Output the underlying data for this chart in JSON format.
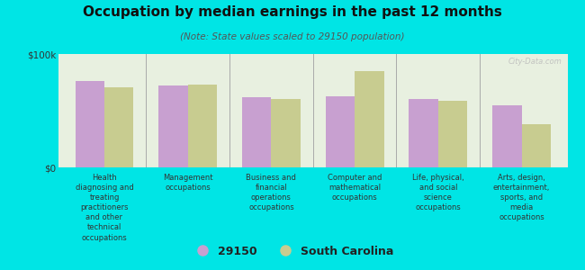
{
  "title": "Occupation by median earnings in the past 12 months",
  "subtitle": "(Note: State values scaled to 29150 population)",
  "categories": [
    "Health\ndiagnosing and\ntreating\npractitioners\nand other\ntechnical\noccupations",
    "Management\noccupations",
    "Business and\nfinancial\noperations\noccupations",
    "Computer and\nmathematical\noccupations",
    "Life, physical,\nand social\nscience\noccupations",
    "Arts, design,\nentertainment,\nsports, and\nmedia\noccupations"
  ],
  "values_29150": [
    76000,
    72000,
    62000,
    63000,
    60000,
    55000
  ],
  "values_sc": [
    71000,
    73000,
    60000,
    85000,
    59000,
    38000
  ],
  "color_29150": "#c8a0d0",
  "color_sc": "#c8cc90",
  "background_color": "#00e5e5",
  "plot_bg_color": "#e8f0e0",
  "ymax": 100000,
  "yticks": [
    0,
    100000
  ],
  "ytick_labels": [
    "$0",
    "$100k"
  ],
  "legend_label_29150": "29150",
  "legend_label_sc": "South Carolina",
  "watermark": "City-Data.com"
}
